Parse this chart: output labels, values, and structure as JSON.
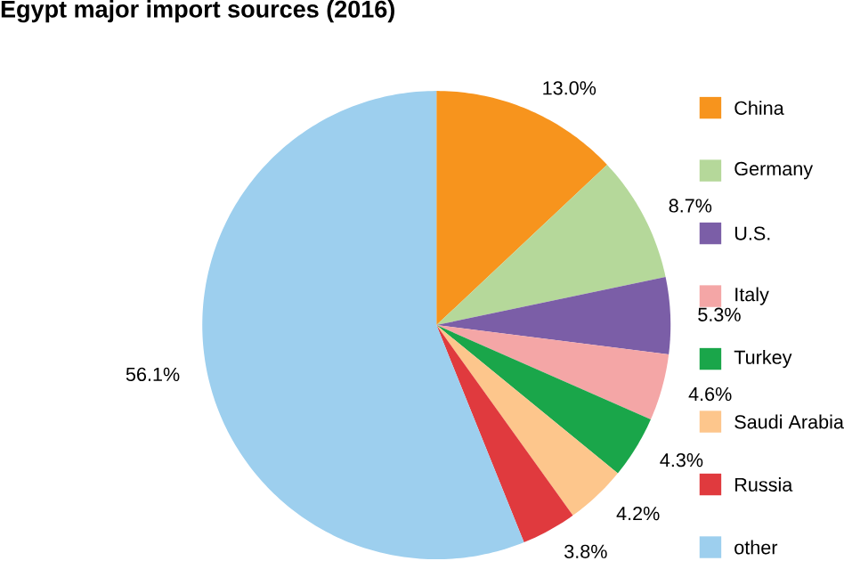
{
  "chart_data": {
    "type": "pie",
    "title": "Egypt major import sources (2016)",
    "categories": [
      "China",
      "Germany",
      "U.S.",
      "Italy",
      "Turkey",
      "Saudi Arabia",
      "Russia",
      "other"
    ],
    "values": [
      13.0,
      8.7,
      5.3,
      4.6,
      4.3,
      4.2,
      3.8,
      56.1
    ],
    "value_labels": [
      "13.0%",
      "8.7%",
      "5.3%",
      "4.6%",
      "4.3%",
      "4.2%",
      "3.8%",
      "56.1%"
    ],
    "colors": [
      "#f7941d",
      "#b5d89a",
      "#7b5ea7",
      "#f4a6a6",
      "#1aa64a",
      "#fdc68c",
      "#e03a3e",
      "#9dcfee"
    ],
    "legend": "right"
  }
}
